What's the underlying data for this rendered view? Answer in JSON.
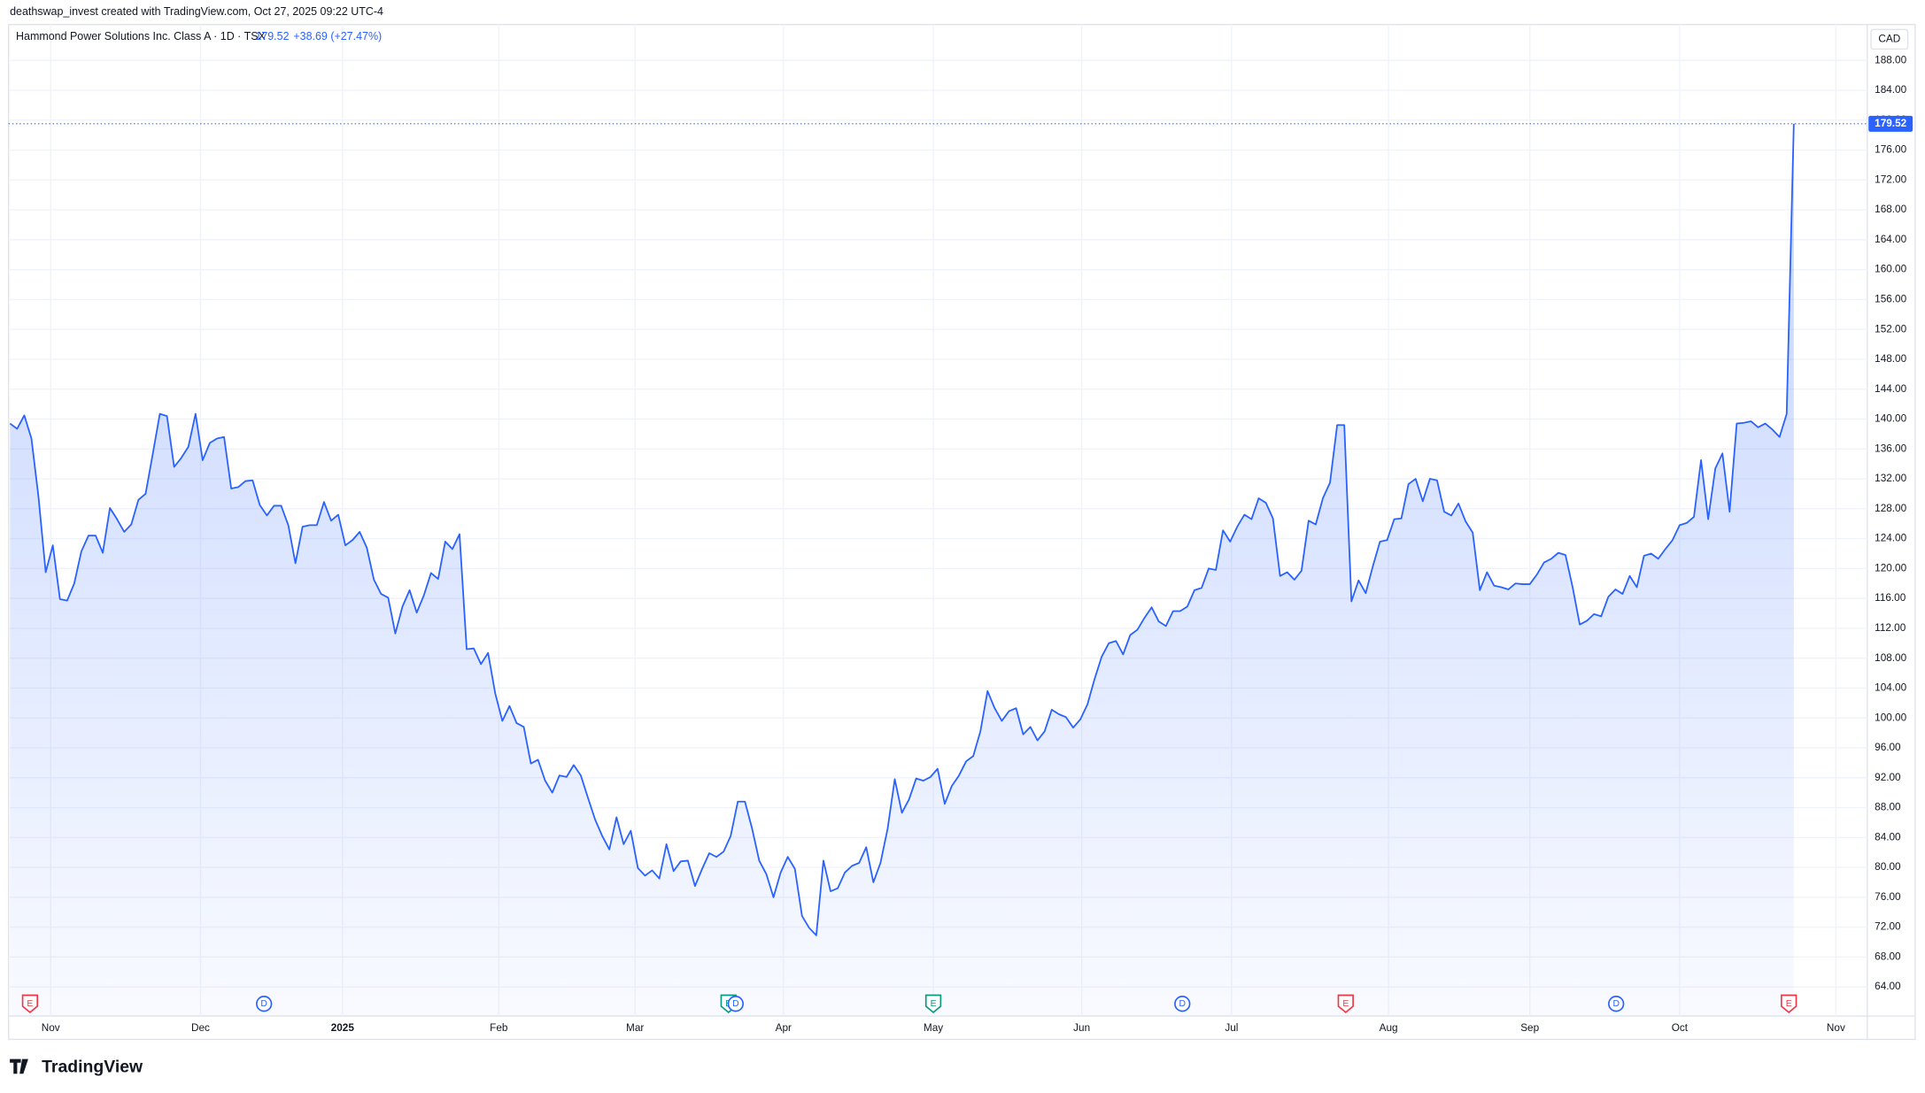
{
  "header": {
    "created": "deathswap_invest created with TradingView.com, Oct 27, 2025 09:22 UTC-4",
    "logo": "TradingView"
  },
  "chart_data": {
    "type": "line",
    "title": "Hammond Power Solutions Inc. Class A · 1D · TSX",
    "last_price": "179.52",
    "change": "+38.69 (+27.47%)",
    "currency": "CAD",
    "color": "#2962ff",
    "grid": true,
    "values": [
      139.4,
      138.7,
      140.5,
      137.4,
      129.5,
      119.5,
      123.1,
      115.9,
      115.7,
      118,
      122.3,
      124.4,
      124.4,
      122.1,
      128.1,
      126.6,
      124.9,
      125.9,
      129.2,
      130,
      135.3,
      140.7,
      140.4,
      133.6,
      134.8,
      136.3,
      140.7,
      134.5,
      136.8,
      137.4,
      137.6,
      130.7,
      130.9,
      131.7,
      131.8,
      128.5,
      127.1,
      128.4,
      128.4,
      125.8,
      120.7,
      125.6,
      125.8,
      125.8,
      128.9,
      126.4,
      127.2,
      123.1,
      123.8,
      124.9,
      122.8,
      118.5,
      116.6,
      116.1,
      111.3,
      114.9,
      117.1,
      114.1,
      116.4,
      119.4,
      118.6,
      123.6,
      122.6,
      124.6,
      109.2,
      109.3,
      107.2,
      108.7,
      103.3,
      99.6,
      101.6,
      99.3,
      98.8,
      93.9,
      94.4,
      91.6,
      90,
      92.3,
      92.1,
      93.7,
      92.3,
      89.3,
      86.4,
      84.2,
      82.4,
      86.7,
      83.1,
      84.9,
      79.9,
      78.9,
      79.6,
      78.5,
      83.1,
      79.5,
      80.8,
      80.9,
      77.5,
      79.8,
      81.9,
      81.4,
      82.1,
      84.2,
      88.8,
      88.8,
      85.2,
      80.9,
      79.1,
      76,
      79.3,
      81.4,
      79.8,
      73.5,
      71.9,
      70.9,
      80.9,
      76.8,
      77.2,
      79.3,
      80.2,
      80.6,
      82.7,
      78,
      80.6,
      85.2,
      91.8,
      87.3,
      89.1,
      91.9,
      91.6,
      92.1,
      93.2,
      88.5,
      90.9,
      92.3,
      94.2,
      94.9,
      98.2,
      103.6,
      101.3,
      99.6,
      100.9,
      101.3,
      97.8,
      98.8,
      97,
      98.2,
      101.1,
      100.5,
      100.1,
      98.7,
      99.8,
      101.8,
      105.2,
      108.2,
      110,
      110.3,
      108.5,
      111.1,
      111.8,
      113.4,
      114.8,
      112.9,
      112.3,
      114.3,
      114.3,
      114.9,
      117.1,
      117.4,
      120,
      119.8,
      125.1,
      123.6,
      125.6,
      127.2,
      126.6,
      129.4,
      128.8,
      126.7,
      119,
      119.5,
      118.5,
      119.7,
      126.4,
      125.9,
      129.4,
      131.5,
      139.2,
      139.2,
      115.6,
      118.4,
      116.7,
      120.3,
      123.6,
      123.8,
      126.6,
      126.7,
      131.3,
      132,
      129,
      132,
      131.8,
      127.6,
      127.1,
      128.7,
      126.3,
      124.8,
      117.1,
      119.5,
      117.7,
      117.5,
      117.2,
      118,
      117.9,
      117.9,
      119.2,
      120.8,
      121.3,
      122.1,
      121.8,
      117.5,
      112.5,
      113,
      113.9,
      113.6,
      116.2,
      117.2,
      116.6,
      119,
      117.5,
      121.7,
      122,
      121.3,
      122.6,
      123.8,
      125.8,
      126.1,
      126.9,
      134.5,
      126.6,
      133.4,
      135.4,
      127.6,
      139.4,
      139.5,
      139.7,
      138.9,
      139.4,
      138.6,
      137.6,
      140.7,
      179.52
    ],
    "xlim": [
      -0.2,
      260.3
    ],
    "xticks": [
      {
        "value": 5.7,
        "label": "Nov"
      },
      {
        "value": 26.7,
        "label": "Dec"
      },
      {
        "value": 46.6,
        "label": "2025"
      },
      {
        "value": 68.5,
        "label": "Feb"
      },
      {
        "value": 87.6,
        "label": "Mar"
      },
      {
        "value": 108.4,
        "label": "Apr"
      },
      {
        "value": 129.4,
        "label": "May"
      },
      {
        "value": 150.2,
        "label": "Jun"
      },
      {
        "value": 171.2,
        "label": "Jul"
      },
      {
        "value": 193.2,
        "label": "Aug"
      },
      {
        "value": 213,
        "label": "Sep"
      },
      {
        "value": 234,
        "label": "Oct"
      },
      {
        "value": 255.9,
        "label": "Nov"
      }
    ],
    "ylim": [
      60.1,
      192.8
    ],
    "yticks": [
      {
        "value": 64,
        "label": "64.00"
      },
      {
        "value": 68,
        "label": "68.00"
      },
      {
        "value": 72,
        "label": "72.00"
      },
      {
        "value": 76,
        "label": "76.00"
      },
      {
        "value": 80,
        "label": "80.00"
      },
      {
        "value": 84,
        "label": "84.00"
      },
      {
        "value": 88,
        "label": "88.00"
      },
      {
        "value": 92,
        "label": "92.00"
      },
      {
        "value": 96,
        "label": "96.00"
      },
      {
        "value": 100,
        "label": "100.00"
      },
      {
        "value": 104,
        "label": "104.00"
      },
      {
        "value": 108,
        "label": "108.00"
      },
      {
        "value": 112,
        "label": "112.00"
      },
      {
        "value": 116,
        "label": "116.00"
      },
      {
        "value": 120,
        "label": "120.00"
      },
      {
        "value": 124,
        "label": "124.00"
      },
      {
        "value": 128,
        "label": "128.00"
      },
      {
        "value": 132,
        "label": "132.00"
      },
      {
        "value": 136,
        "label": "136.00"
      },
      {
        "value": 140,
        "label": "140.00"
      },
      {
        "value": 144,
        "label": "144.00"
      },
      {
        "value": 148,
        "label": "148.00"
      },
      {
        "value": 152,
        "label": "152.00"
      },
      {
        "value": 156,
        "label": "156.00"
      },
      {
        "value": 160,
        "label": "160.00"
      },
      {
        "value": 164,
        "label": "164.00"
      },
      {
        "value": 168,
        "label": "168.00"
      },
      {
        "value": 172,
        "label": "172.00"
      },
      {
        "value": 176,
        "label": "176.00"
      },
      {
        "value": 180,
        "label": "180.00"
      },
      {
        "value": 184,
        "label": "184.00"
      },
      {
        "value": 188,
        "label": "188.00"
      }
    ],
    "events": [
      {
        "label": "E",
        "at": 2.8,
        "color": "#f23645"
      },
      {
        "label": "D",
        "at": 35.6,
        "color": "#2962ff"
      },
      {
        "label": "E",
        "at": 100.7,
        "color": "#089981"
      },
      {
        "label": "D",
        "at": 101.7,
        "color": "#2962ff"
      },
      {
        "label": "E",
        "at": 129.4,
        "color": "#089981"
      },
      {
        "label": "D",
        "at": 164.3,
        "color": "#2962ff"
      },
      {
        "label": "E",
        "at": 187.2,
        "color": "#f23645"
      },
      {
        "label": "D",
        "at": 225.1,
        "color": "#2962ff"
      },
      {
        "label": "E",
        "at": 249.3,
        "color": "#f23645"
      }
    ]
  }
}
